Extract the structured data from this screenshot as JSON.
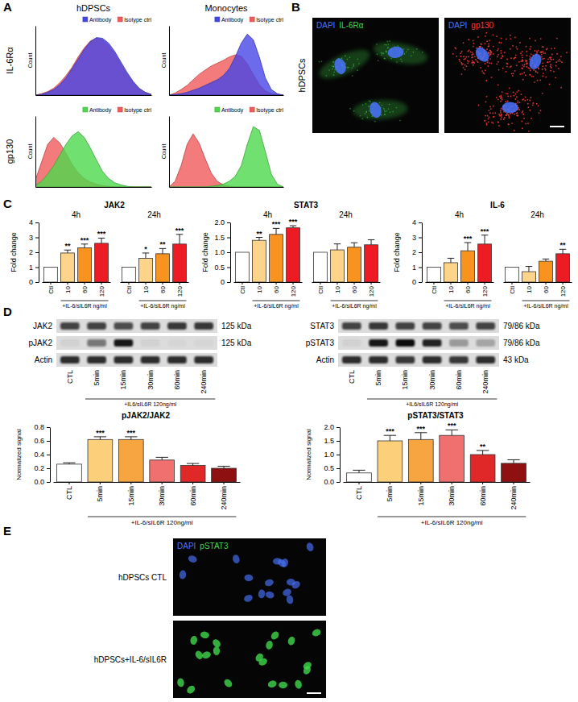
{
  "chart_data": [
    {
      "type": "area",
      "x": [
        0,
        1,
        2,
        3,
        4,
        5,
        6,
        7,
        8,
        9,
        10,
        11,
        12,
        13,
        14,
        15,
        16,
        17,
        18,
        19
      ],
      "xlim": [
        0,
        19
      ],
      "ylim": [
        0,
        100
      ],
      "tick_labels": false,
      "y_label": "Count",
      "legend": "top",
      "series": [
        {
          "name": "Antibody",
          "color": "#4646e6",
          "values": [
            0,
            1,
            4,
            8,
            15,
            25,
            38,
            52,
            66,
            77,
            83,
            82,
            75,
            63,
            48,
            33,
            20,
            10,
            4,
            1
          ]
        },
        {
          "name": "Isotype ctrl",
          "color": "#f05a5a",
          "values": [
            0,
            2,
            5,
            10,
            18,
            28,
            40,
            55,
            68,
            78,
            82,
            80,
            72,
            60,
            45,
            30,
            18,
            9,
            4,
            1
          ]
        }
      ]
    },
    {
      "type": "area",
      "x": [
        0,
        1,
        2,
        3,
        4,
        5,
        6,
        7,
        8,
        9,
        10,
        11,
        12,
        13,
        14,
        15,
        16,
        17,
        18,
        19
      ],
      "xlim": [
        0,
        19
      ],
      "ylim": [
        0,
        100
      ],
      "tick_labels": false,
      "y_label": "Count",
      "legend": "top",
      "series": [
        {
          "name": "Antibody",
          "color": "#4646e6",
          "values": [
            0,
            1,
            2,
            4,
            7,
            10,
            14,
            18,
            22,
            28,
            38,
            55,
            75,
            88,
            80,
            55,
            25,
            8,
            2,
            0
          ]
        },
        {
          "name": "Isotype ctrl",
          "color": "#f05a5a",
          "values": [
            0,
            3,
            8,
            14,
            22,
            30,
            36,
            42,
            46,
            50,
            55,
            58,
            56,
            45,
            30,
            15,
            6,
            2,
            1,
            0
          ]
        }
      ]
    },
    {
      "type": "area",
      "x": [
        0,
        1,
        2,
        3,
        4,
        5,
        6,
        7,
        8,
        9,
        10,
        11,
        12,
        13,
        14,
        15,
        16,
        17,
        18,
        19
      ],
      "xlim": [
        0,
        19
      ],
      "ylim": [
        0,
        100
      ],
      "tick_labels": false,
      "y_label": "Count",
      "legend": "top",
      "series": [
        {
          "name": "Antibody",
          "color": "#4cd94c",
          "values": [
            2,
            8,
            18,
            30,
            45,
            60,
            72,
            78,
            70,
            55,
            38,
            22,
            12,
            6,
            3,
            1,
            0,
            0,
            0,
            0
          ]
        },
        {
          "name": "Isotype ctrl",
          "color": "#f05a5a",
          "values": [
            10,
            35,
            60,
            70,
            62,
            48,
            32,
            20,
            12,
            7,
            4,
            2,
            1,
            0,
            0,
            0,
            0,
            0,
            0,
            0
          ]
        }
      ]
    },
    {
      "type": "area",
      "x": [
        0,
        1,
        2,
        3,
        4,
        5,
        6,
        7,
        8,
        9,
        10,
        11,
        12,
        13,
        14,
        15,
        16,
        17,
        18,
        19
      ],
      "xlim": [
        0,
        19
      ],
      "ylim": [
        0,
        100
      ],
      "tick_labels": false,
      "y_label": "Count",
      "legend": "top",
      "series": [
        {
          "name": "Antibody",
          "color": "#4cd94c",
          "values": [
            0,
            0,
            0,
            0,
            0,
            0,
            0,
            1,
            2,
            4,
            8,
            15,
            30,
            60,
            85,
            80,
            50,
            18,
            4,
            0
          ]
        },
        {
          "name": "Isotype ctrl",
          "color": "#f05a5a",
          "values": [
            0,
            8,
            30,
            60,
            75,
            62,
            40,
            20,
            8,
            3,
            1,
            0,
            0,
            0,
            0,
            0,
            0,
            0,
            0,
            0
          ]
        }
      ]
    },
    {
      "type": "bar",
      "title": "JAK2",
      "y_label": "Fold change",
      "x_label": "+IL-6/sIL6R ng/ml",
      "categories": [
        "Ctl",
        "10",
        "60",
        "120"
      ],
      "colors": [
        "#ffffff",
        "#fdd48a",
        "#f7931e",
        "#ed1c24"
      ],
      "ylim": [
        0,
        4
      ],
      "yticks": [
        0,
        1,
        2,
        3,
        4
      ],
      "series": [
        {
          "name": "4h",
          "values": [
            1,
            1.95,
            2.3,
            2.6
          ],
          "errors": [
            null,
            0.2,
            0.25,
            0.35
          ],
          "significance": [
            null,
            "**",
            "***",
            "***"
          ]
        },
        {
          "name": "24h",
          "values": [
            1,
            1.6,
            1.9,
            2.55
          ],
          "errors": [
            null,
            0.35,
            0.35,
            0.65
          ],
          "significance": [
            null,
            "*",
            "**",
            "***"
          ]
        }
      ]
    },
    {
      "type": "bar",
      "title": "STAT3",
      "y_label": "Fold change",
      "x_label": "+IL-6/sIL6R ng/ml",
      "categories": [
        "Ctl",
        "10",
        "60",
        "120"
      ],
      "colors": [
        "#ffffff",
        "#fdd48a",
        "#f7931e",
        "#ed1c24"
      ],
      "ylim": [
        0,
        2
      ],
      "yticks": [
        0,
        0.5,
        {
          "value": 1,
          "label": "1.0"
        },
        1.5,
        {
          "value": 2,
          "label": "2.0"
        }
      ],
      "series": [
        {
          "name": "4h",
          "values": [
            1,
            1.4,
            1.6,
            1.82
          ],
          "errors": [
            null,
            0.1,
            0.2,
            0.07
          ],
          "significance": [
            null,
            "**",
            "***",
            "***"
          ]
        },
        {
          "name": "24h",
          "values": [
            1,
            1.08,
            1.17,
            1.25
          ],
          "errors": [
            null,
            0.2,
            0.15,
            0.17
          ],
          "significance": [
            null,
            null,
            null,
            null
          ]
        }
      ]
    },
    {
      "type": "bar",
      "title": "IL-6",
      "y_label": "Fold change",
      "x_label": "+IL-6/sIL6R ng/ml",
      "categories": [
        "Ctl",
        "10",
        "60",
        "120"
      ],
      "colors": [
        "#ffffff",
        "#fdd48a",
        "#f7931e",
        "#ed1c24"
      ],
      "ylim": [
        0,
        4
      ],
      "yticks": [
        0,
        1,
        2,
        3,
        4
      ],
      "series": [
        {
          "name": "4h",
          "values": [
            1,
            1.3,
            2.1,
            2.55
          ],
          "errors": [
            null,
            0.3,
            0.55,
            0.6
          ],
          "significance": [
            null,
            null,
            "***",
            "***"
          ]
        },
        {
          "name": "24h",
          "values": [
            1,
            0.7,
            1.4,
            1.9
          ],
          "errors": [
            null,
            0.35,
            0.15,
            0.3
          ],
          "significance": [
            null,
            null,
            null,
            "**"
          ]
        }
      ]
    },
    {
      "type": "bar",
      "title": "pJAK2/JAK2",
      "y_label": "Normalized signal",
      "x_label": "+IL-6/sIL6R 120ng/ml",
      "categories": [
        "CTL",
        "5min",
        "15min",
        "30min",
        "60min",
        "240min"
      ],
      "colors": [
        "#ffffff",
        "#fcd07a",
        "#f7a540",
        "#f07070",
        "#e02828",
        "#8e1010"
      ],
      "ylim": [
        0,
        0.8
      ],
      "yticks": [
        {
          "value": 0,
          "label": "0.0"
        },
        0.2,
        0.4,
        0.6,
        0.8
      ],
      "values": [
        0.26,
        0.62,
        0.62,
        0.32,
        0.24,
        0.2
      ],
      "errors": [
        0.02,
        0.04,
        0.04,
        0.04,
        0.03,
        0.03
      ],
      "significance": [
        null,
        "***",
        "***",
        null,
        null,
        null
      ]
    },
    {
      "type": "bar",
      "title": "pSTAT3/STAT3",
      "y_label": "Normalized signal",
      "x_label": "+IL-6/sIL6R 120ng/ml",
      "categories": [
        "CTL",
        "5min",
        "15min",
        "30min",
        "60min",
        "240min"
      ],
      "colors": [
        "#ffffff",
        "#fcd07a",
        "#f7a540",
        "#f07070",
        "#e02828",
        "#8e1010"
      ],
      "ylim": [
        0,
        2
      ],
      "yticks": [
        {
          "value": 0,
          "label": "0.0"
        },
        0.5,
        {
          "value": 1,
          "label": "1.0"
        },
        1.5,
        {
          "value": 2,
          "label": "2.0"
        }
      ],
      "values": [
        0.33,
        1.5,
        1.55,
        1.7,
        1.0,
        0.68
      ],
      "errors": [
        0.1,
        0.2,
        0.25,
        0.2,
        0.15,
        0.13
      ],
      "significance": [
        null,
        "***",
        "***",
        "***",
        "**",
        null
      ]
    }
  ],
  "panels": [
    {
      "letter": "A",
      "column_titles": [
        "hDPSCs",
        "Monocytes"
      ],
      "row_titles": [
        "IL-6Rα",
        "gp130"
      ]
    },
    {
      "letter": "B",
      "row_title": "hDPSCs",
      "images": [
        {
          "stains": [
            "DAPI",
            "IL-6Rα"
          ],
          "colors": [
            "#4a74ff",
            "#3fd84a"
          ]
        },
        {
          "stains": [
            "DAPI",
            "gp130"
          ],
          "colors": [
            "#4a74ff",
            "#ff3b3b"
          ]
        }
      ]
    },
    {
      "letter": "C"
    },
    {
      "letter": "D",
      "blots": [
        {
          "lanes": [
            "CTL",
            "5min",
            "15min",
            "30min",
            "60min",
            "240min"
          ],
          "x_label": "+IL6/sIL6R 120ng/ml",
          "rows": [
            {
              "name": "JAK2",
              "size": "125 kDa",
              "intensity": [
                0.75,
                0.75,
                0.7,
                0.75,
                0.8,
                0.8
              ]
            },
            {
              "name": "pJAK2",
              "size": "125 kDa",
              "intensity": [
                0.05,
                0.5,
                0.95,
                0.05,
                0.03,
                0.03
              ]
            },
            {
              "name": "Actin",
              "intensity": [
                0.85,
                0.85,
                0.85,
                0.85,
                0.85,
                0.85
              ]
            }
          ]
        },
        {
          "lanes": [
            "CTL",
            "5min",
            "15min",
            "30min",
            "60min",
            "240min"
          ],
          "x_label": "+IL6/sIL6R 120ng/ml",
          "rows": [
            {
              "name": "STAT3",
              "size": "79/86 kDa",
              "intensity": [
                0.75,
                0.8,
                0.75,
                0.75,
                0.7,
                0.75
              ]
            },
            {
              "name": "pSTAT3",
              "size": "79/86 kDa",
              "intensity": [
                0.05,
                0.95,
                1,
                0.9,
                0.3,
                0.25
              ]
            },
            {
              "name": "Actin",
              "size": "43 kDa",
              "intensity": [
                0.85,
                0.85,
                0.8,
                0.85,
                0.8,
                0.85
              ]
            }
          ]
        }
      ]
    },
    {
      "letter": "E",
      "stains": [
        "DAPI",
        "pSTAT3"
      ],
      "colors": [
        "#4a74ff",
        "#3fd84a"
      ],
      "images": [
        "hDPSCs CTL",
        "hDPSCs+IL-6/sIL6R"
      ]
    }
  ]
}
